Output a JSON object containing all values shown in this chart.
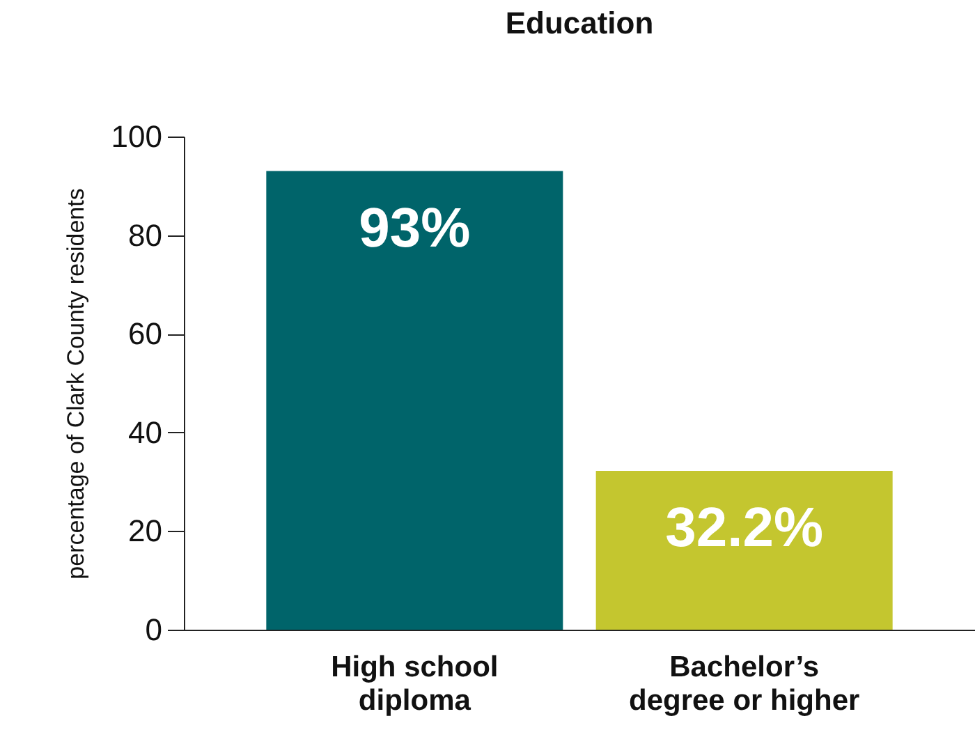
{
  "chart_data": {
    "type": "bar",
    "title": "Education",
    "ylabel": "percentage of Clark County residents",
    "categories": [
      "High school diploma",
      "Bachelor’s degree or higher"
    ],
    "values": [
      93,
      32.2
    ],
    "colors": [
      "#00646a",
      "#c4c62f"
    ],
    "value_labels": [
      "93%",
      "32.2%"
    ],
    "ylim": [
      0,
      100
    ],
    "yticks": [
      0,
      20,
      40,
      60,
      80,
      100
    ],
    "grid": false
  }
}
